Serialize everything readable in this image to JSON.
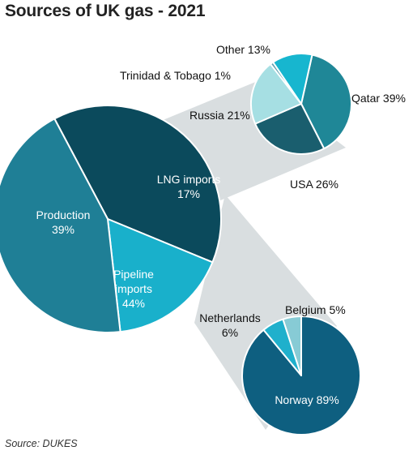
{
  "title": "Sources of UK gas - 2021",
  "source": "Source: DUKES",
  "chart_data": [
    {
      "type": "pie",
      "role": "main",
      "slices": [
        {
          "key": "production",
          "label_lines": [
            "Production",
            "39%"
          ],
          "value": 39,
          "color": "#0b4a5c"
        },
        {
          "key": "lng",
          "label_lines": [
            "LNG imports",
            "17%"
          ],
          "value": 17,
          "color": "#19b0cb"
        },
        {
          "key": "pipeline",
          "label_lines": [
            "Pipeline",
            "imports",
            "44%"
          ],
          "value": 44,
          "color": "#1f7f96"
        }
      ]
    },
    {
      "type": "pie",
      "role": "breakdown",
      "of": "LNG imports",
      "slices": [
        {
          "key": "qatar",
          "label_lines": [
            "Qatar 39%"
          ],
          "value": 39,
          "color": "#1f8797"
        },
        {
          "key": "usa",
          "label_lines": [
            "USA 26%"
          ],
          "value": 26,
          "color": "#1a5e6e"
        },
        {
          "key": "russia",
          "label_lines": [
            "Russia 21%"
          ],
          "value": 21,
          "color": "#a6dfe3"
        },
        {
          "key": "trinidad",
          "label_lines": [
            "Trinidad & Tobago 1%"
          ],
          "value": 1,
          "color": "#5c9fae"
        },
        {
          "key": "other",
          "label_lines": [
            "Other 13%"
          ],
          "value": 13,
          "color": "#17b6cf"
        }
      ]
    },
    {
      "type": "pie",
      "role": "breakdown",
      "of": "Pipeline imports",
      "slices": [
        {
          "key": "norway",
          "label_lines": [
            "Norway 89%"
          ],
          "value": 89,
          "color": "#0e5f80"
        },
        {
          "key": "netherlands",
          "label_lines": [
            "Netherlands",
            "6%"
          ],
          "value": 6,
          "color": "#1fb0cc"
        },
        {
          "key": "belgium",
          "label_lines": [
            "Belgium 5%"
          ],
          "value": 5,
          "color": "#87cbd5"
        }
      ]
    }
  ]
}
